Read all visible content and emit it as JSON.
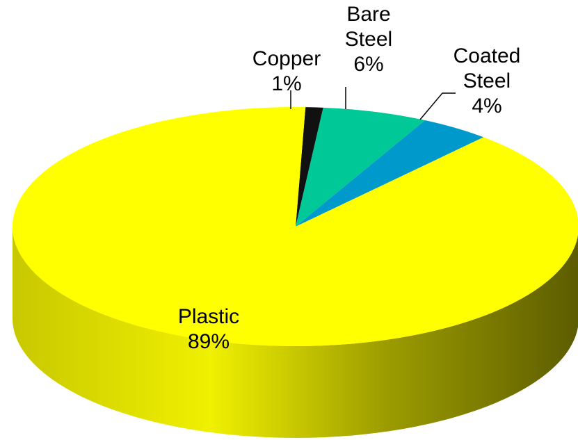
{
  "chart_data": {
    "type": "pie",
    "style": "3d",
    "title": "",
    "slices": [
      {
        "name": "Copper",
        "label_lines": [
          "Copper",
          "1%"
        ],
        "value": 1,
        "color": "#111111",
        "side_color": "#050505"
      },
      {
        "name": "Bare Steel",
        "label_lines": [
          "Bare",
          "Steel",
          "6%"
        ],
        "value": 6,
        "color": "#00C896",
        "side_color": "#008a68"
      },
      {
        "name": "Coated Steel",
        "label_lines": [
          "Coated",
          "Steel",
          "4%"
        ],
        "value": 4,
        "color": "#0099CC",
        "side_color": "#006688"
      },
      {
        "name": "Plastic",
        "label_lines": [
          "Plastic",
          "89%"
        ],
        "value": 89,
        "color": "#FFFF00",
        "side_color": "#9a9a00"
      }
    ]
  }
}
